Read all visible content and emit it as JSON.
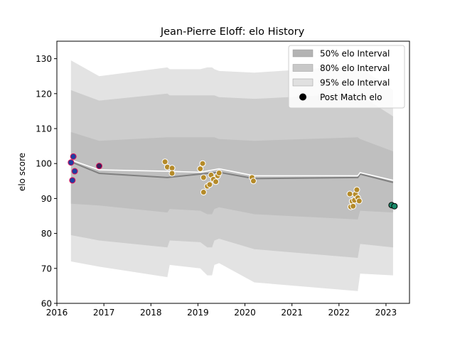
{
  "chart_data": {
    "type": "line",
    "title": "Jean-Pierre Eloff: elo History",
    "xlabel": "",
    "ylabel": "elo score",
    "xlim": [
      2016.0,
      2023.5
    ],
    "ylim": [
      60,
      135
    ],
    "x_ticks": [
      2016,
      2017,
      2018,
      2019,
      2020,
      2021,
      2022,
      2023
    ],
    "y_ticks": [
      60,
      70,
      80,
      90,
      100,
      110,
      120,
      130
    ],
    "x_tick_labels": [
      "2016",
      "2017",
      "2018",
      "2019",
      "2020",
      "2021",
      "2022",
      "2023"
    ],
    "y_tick_labels": [
      "60",
      "70",
      "80",
      "90",
      "100",
      "110",
      "120",
      "130"
    ],
    "legend_position": "top-right",
    "legend": [
      {
        "label": "50% elo Interval",
        "kind": "patch",
        "color": "#b3b3b3"
      },
      {
        "label": "80% elo Interval",
        "kind": "patch",
        "color": "#c8c8c8"
      },
      {
        "label": "95% elo Interval",
        "kind": "patch",
        "color": "#e0e0e0"
      },
      {
        "label": "Post Match elo",
        "kind": "marker",
        "color": "#000000"
      }
    ],
    "series": [
      {
        "name": "",
        "kind": "line",
        "color": "#808080",
        "x": [
          2016.3,
          2016.9,
          2018.35,
          2019.05,
          2019.45,
          2020.2,
          2022.4,
          2022.45,
          2023.15
        ],
        "y": [
          100.5,
          97.2,
          96.0,
          97.0,
          97.5,
          95.7,
          96.0,
          97.0,
          94.6
        ]
      },
      {
        "name": "",
        "kind": "line",
        "color": "#ffffff",
        "x": [
          2016.3,
          2016.9,
          2018.35,
          2019.05,
          2019.45,
          2020.2,
          2022.4,
          2022.45,
          2023.15
        ],
        "y": [
          101.0,
          98.2,
          97.8,
          97.5,
          98.5,
          96.5,
          96.5,
          97.4,
          95.2
        ]
      }
    ],
    "bands": [
      {
        "name": "95% elo Interval",
        "color": "#e3e3e3",
        "x": [
          2016.3,
          2016.9,
          2018.35,
          2018.4,
          2019.05,
          2019.2,
          2019.3,
          2019.35,
          2019.45,
          2020.2,
          2022.4,
          2022.45,
          2023.15
        ],
        "upper": [
          129.5,
          125.0,
          127.5,
          127.0,
          127.0,
          127.5,
          127.5,
          127.0,
          126.5,
          126.0,
          128.0,
          127.5,
          121.0
        ],
        "lower": [
          72.0,
          70.5,
          67.5,
          71.0,
          70.0,
          68.0,
          68.0,
          71.0,
          71.5,
          66.0,
          63.5,
          68.5,
          68.0
        ]
      },
      {
        "name": "80% elo Interval",
        "color": "#cdcdcd",
        "x": [
          2016.3,
          2016.9,
          2018.35,
          2018.4,
          2019.05,
          2019.2,
          2019.3,
          2019.35,
          2019.45,
          2020.2,
          2022.4,
          2022.45,
          2023.15
        ],
        "upper": [
          121.0,
          118.0,
          120.0,
          119.5,
          119.5,
          119.5,
          119.5,
          119.5,
          119.0,
          118.5,
          120.0,
          119.5,
          113.5
        ],
        "lower": [
          79.5,
          78.0,
          76.0,
          78.0,
          77.5,
          76.0,
          76.0,
          78.0,
          78.5,
          75.5,
          73.0,
          77.0,
          76.0
        ]
      },
      {
        "name": "50% elo Interval",
        "color": "#bfbfbf",
        "x": [
          2016.3,
          2016.9,
          2018.35,
          2018.4,
          2019.05,
          2019.2,
          2019.3,
          2019.35,
          2019.45,
          2020.2,
          2022.4,
          2022.45,
          2023.15
        ],
        "upper": [
          109.0,
          106.5,
          107.5,
          107.5,
          107.5,
          107.5,
          107.5,
          107.5,
          107.0,
          106.5,
          107.5,
          107.0,
          103.5
        ],
        "lower": [
          88.5,
          88.0,
          86.0,
          87.0,
          86.5,
          85.5,
          85.5,
          87.0,
          87.5,
          85.5,
          84.0,
          86.5,
          86.0
        ]
      }
    ],
    "points": [
      {
        "x": 2016.3,
        "y": 100.3,
        "color": "#1f3fa0",
        "edge": "#e0105a"
      },
      {
        "x": 2016.35,
        "y": 102.0,
        "color": "#1f3fa0",
        "edge": "#e0105a"
      },
      {
        "x": 2016.38,
        "y": 97.8,
        "color": "#1f3fa0",
        "edge": "#e0105a"
      },
      {
        "x": 2016.33,
        "y": 95.2,
        "color": "#1f3fa0",
        "edge": "#e0105a"
      },
      {
        "x": 2016.9,
        "y": 99.3,
        "color": "#3a1f5a",
        "edge": "#e0105a"
      },
      {
        "x": 2018.3,
        "y": 100.5,
        "color": "#b58b2a",
        "edge": "#ffffff"
      },
      {
        "x": 2018.35,
        "y": 99.0,
        "color": "#b58b2a",
        "edge": "#ffffff"
      },
      {
        "x": 2018.45,
        "y": 98.7,
        "color": "#b58b2a",
        "edge": "#ffffff"
      },
      {
        "x": 2018.45,
        "y": 97.2,
        "color": "#b58b2a",
        "edge": "#ffffff"
      },
      {
        "x": 2019.05,
        "y": 98.5,
        "color": "#b58b2a",
        "edge": "#ffffff"
      },
      {
        "x": 2019.1,
        "y": 100.0,
        "color": "#b58b2a",
        "edge": "#ffffff"
      },
      {
        "x": 2019.12,
        "y": 96.0,
        "color": "#b58b2a",
        "edge": "#ffffff"
      },
      {
        "x": 2019.12,
        "y": 91.8,
        "color": "#b58b2a",
        "edge": "#ffffff"
      },
      {
        "x": 2019.2,
        "y": 93.5,
        "color": "#b58b2a",
        "edge": "#ffffff"
      },
      {
        "x": 2019.25,
        "y": 94.0,
        "color": "#b58b2a",
        "edge": "#ffffff"
      },
      {
        "x": 2019.28,
        "y": 96.7,
        "color": "#b58b2a",
        "edge": "#ffffff"
      },
      {
        "x": 2019.33,
        "y": 95.5,
        "color": "#b58b2a",
        "edge": "#ffffff"
      },
      {
        "x": 2019.38,
        "y": 94.8,
        "color": "#b58b2a",
        "edge": "#ffffff"
      },
      {
        "x": 2019.42,
        "y": 96.5,
        "color": "#b58b2a",
        "edge": "#ffffff"
      },
      {
        "x": 2019.45,
        "y": 97.3,
        "color": "#b58b2a",
        "edge": "#ffffff"
      },
      {
        "x": 2020.15,
        "y": 96.0,
        "color": "#b58b2a",
        "edge": "#ffffff"
      },
      {
        "x": 2020.18,
        "y": 95.0,
        "color": "#b58b2a",
        "edge": "#ffffff"
      },
      {
        "x": 2022.23,
        "y": 91.3,
        "color": "#b58b2a",
        "edge": "#ffffff"
      },
      {
        "x": 2022.25,
        "y": 87.6,
        "color": "#b58b2a",
        "edge": "#ffffff"
      },
      {
        "x": 2022.28,
        "y": 89.2,
        "color": "#b58b2a",
        "edge": "#ffffff"
      },
      {
        "x": 2022.3,
        "y": 87.8,
        "color": "#b58b2a",
        "edge": "#ffffff"
      },
      {
        "x": 2022.33,
        "y": 89.5,
        "color": "#b58b2a",
        "edge": "#ffffff"
      },
      {
        "x": 2022.35,
        "y": 91.2,
        "color": "#b58b2a",
        "edge": "#ffffff"
      },
      {
        "x": 2022.38,
        "y": 92.5,
        "color": "#b58b2a",
        "edge": "#ffffff"
      },
      {
        "x": 2022.4,
        "y": 90.2,
        "color": "#b58b2a",
        "edge": "#ffffff"
      },
      {
        "x": 2022.43,
        "y": 89.3,
        "color": "#b58b2a",
        "edge": "#ffffff"
      },
      {
        "x": 2023.12,
        "y": 88.1,
        "color": "#1a8a6a",
        "edge": "#000000"
      },
      {
        "x": 2023.18,
        "y": 87.8,
        "color": "#1a8a6a",
        "edge": "#000000"
      }
    ]
  }
}
